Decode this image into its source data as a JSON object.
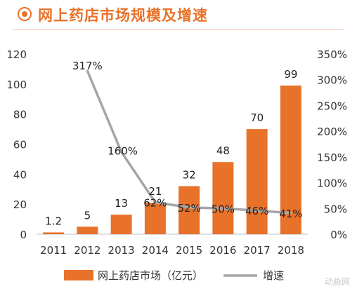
{
  "page": {
    "title": "网上药店市场规模及增速",
    "watermark": "动脉网"
  },
  "chart_data": {
    "type": "bar",
    "title": "网上药店市场规模及增速",
    "categories": [
      "2011",
      "2012",
      "2013",
      "2014",
      "2015",
      "2016",
      "2017",
      "2018"
    ],
    "series": [
      {
        "name": "网上药店市场（亿元）",
        "type": "bar",
        "axis": "left",
        "values": [
          1.2,
          5,
          13,
          21,
          32,
          48,
          70,
          99
        ],
        "labels": [
          "1.2",
          "5",
          "13",
          "21",
          "32",
          "48",
          "70",
          "99"
        ],
        "color": "#e8722a"
      },
      {
        "name": "增速",
        "type": "line",
        "axis": "right",
        "values": [
          null,
          317,
          160,
          62,
          52,
          50,
          46,
          41
        ],
        "labels": [
          "",
          "317%",
          "160%",
          "62%",
          "52%",
          "50%",
          "46%",
          "41%"
        ],
        "color": "#a6a6a6"
      }
    ],
    "y_left": {
      "ylim": [
        0,
        120
      ],
      "ticks": [
        "0",
        "20",
        "40",
        "60",
        "80",
        "100",
        "120"
      ]
    },
    "y_right": {
      "ylim": [
        0,
        350
      ],
      "ticks": [
        "0%",
        "50%",
        "100%",
        "150%",
        "200%",
        "250%",
        "300%",
        "350%"
      ]
    },
    "grid": false,
    "legend": "bottom"
  }
}
